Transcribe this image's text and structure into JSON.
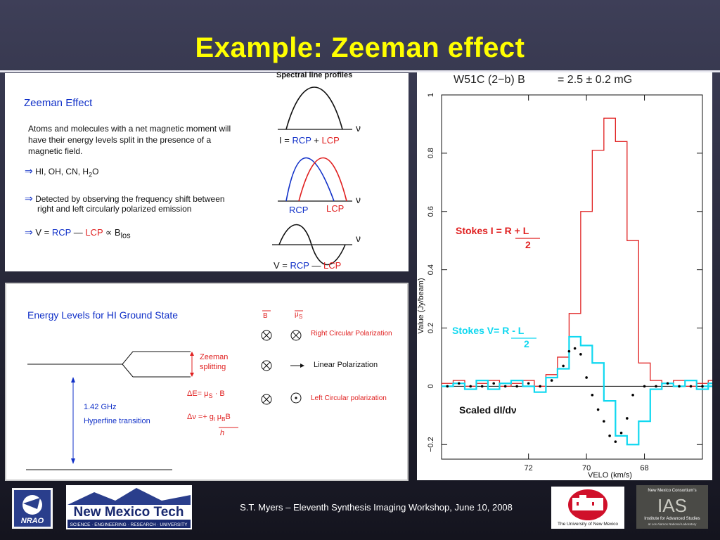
{
  "slide": {
    "title": "Example: Zeeman effect",
    "footer": "S.T. Myers – Eleventh Synthesis Imaging Workshop, June 10, 2008"
  },
  "panel1": {
    "heading": "Zeeman Effect",
    "paragraph": [
      "Atoms and molecules with a net magnetic moment will",
      "have their energy levels split in the presence of a",
      "magnetic field."
    ],
    "bullet1": "HI, OH, CN, H",
    "bullet1_sub": "2",
    "bullet1_end": "O",
    "bullet2": [
      "Detected by observing the frequency shift between",
      "right and left circularly polarized emission"
    ],
    "bullet3": {
      "v": "V =",
      "rcp": "RCP",
      "minus": "—",
      "lcp": "LCP",
      "prop": "∝ B",
      "sub": "los"
    },
    "profiles_title": "Spectral line profiles",
    "eq1": {
      "i": "I =",
      "rcp": "RCP",
      "plus": "+",
      "lcp": "LCP"
    },
    "labels2": {
      "rcp": "RCP",
      "lcp": "LCP"
    },
    "eq3": {
      "v": "V =",
      "rcp": "RCP",
      "minus": "—",
      "lcp": "LCP"
    },
    "nu": "ν",
    "arrow": "⇒"
  },
  "panel2": {
    "heading": "Energy Levels for HI Ground State",
    "zeeman": [
      "Zeeman",
      "splitting"
    ],
    "freq": "1.42 GHz",
    "hyperfine": "Hyperfine transition",
    "b_label": "B",
    "mu_label": "μ",
    "mu_sub": "S",
    "rcp_text": "Right Circular Polarization",
    "lin_text": "Linear Polarization",
    "lcp_text": "Left Circular polarization",
    "dE": "ΔE= μ",
    "dE_end": "· B",
    "dnu": "Δν =+ g",
    "dnu_mid": "μ",
    "dnu_end": "B",
    "h": "h"
  },
  "chart_data": {
    "type": "line",
    "title": "W51C (2−b)  B",
    "title_value": "= 2.5 ± 0.2 mG",
    "xlabel": "VELO (km/s)",
    "ylabel": "Value (Jy/beam)",
    "xlim": [
      75,
      66
    ],
    "ylim": [
      -0.25,
      1.0
    ],
    "xticks": [
      72,
      70,
      68
    ],
    "yticks": [
      -0.2,
      0,
      0.2,
      0.4,
      0.6,
      0.8,
      1
    ],
    "series": [
      {
        "name": "Stokes I = R + L / 2",
        "color": "#e02020",
        "x": [
          75.0,
          74.6,
          74.2,
          73.8,
          73.4,
          73.0,
          72.6,
          72.2,
          71.8,
          71.4,
          71.0,
          70.6,
          70.2,
          69.8,
          69.4,
          69.0,
          68.6,
          68.2,
          67.8,
          67.4,
          67.0,
          66.6,
          66.2,
          65.8,
          65.4
        ],
        "y": [
          0.01,
          0.02,
          0.0,
          0.01,
          0.02,
          0.0,
          0.01,
          0.02,
          0.0,
          0.04,
          0.1,
          0.25,
          0.6,
          0.81,
          0.92,
          0.84,
          0.5,
          0.08,
          0.02,
          0.01,
          0.02,
          0.0,
          0.01,
          0.02,
          0.0
        ]
      },
      {
        "name": "Stokes V= R - L / 2",
        "color": "#10d8f0",
        "x": [
          75.0,
          74.6,
          74.2,
          73.8,
          73.4,
          73.0,
          72.6,
          72.2,
          71.8,
          71.4,
          71.0,
          70.6,
          70.2,
          69.8,
          69.4,
          69.0,
          68.6,
          68.2,
          67.8,
          67.4,
          67.0,
          66.6,
          66.2,
          65.8,
          65.4
        ],
        "y": [
          0.0,
          0.01,
          -0.01,
          0.02,
          -0.01,
          0.01,
          0.02,
          0.0,
          -0.02,
          0.03,
          0.06,
          0.17,
          0.14,
          0.08,
          -0.05,
          -0.17,
          -0.2,
          -0.12,
          -0.01,
          0.01,
          0.0,
          0.02,
          -0.01,
          0.01,
          0.0
        ]
      },
      {
        "name": "Scaled dI/dν",
        "color": "#000000",
        "x": [
          74.8,
          74.4,
          74.0,
          73.6,
          73.2,
          72.8,
          72.4,
          72.0,
          71.6,
          71.2,
          70.8,
          70.6,
          70.4,
          70.2,
          70.0,
          69.8,
          69.6,
          69.4,
          69.2,
          69.0,
          68.8,
          68.6,
          68.4,
          68.0,
          67.6,
          67.2,
          66.8,
          66.4,
          66.0
        ],
        "y": [
          0.0,
          0.01,
          0.0,
          0.0,
          0.01,
          0.0,
          0.0,
          0.01,
          0.0,
          0.02,
          0.07,
          0.12,
          0.13,
          0.11,
          0.03,
          -0.03,
          -0.08,
          -0.12,
          -0.17,
          -0.19,
          -0.16,
          -0.11,
          -0.03,
          0.0,
          0.0,
          0.01,
          0.0,
          0.0,
          0.0
        ]
      }
    ],
    "annotations": {
      "stokes_i": "Stokes I = R + L",
      "stokes_v": "Stokes V= R - L",
      "den": "2",
      "scaled": "Scaled dI/dν"
    }
  },
  "logos": {
    "nrao": "NRAO",
    "nmt": "New Mexico Tech",
    "nmt_sub": "SCIENCE · ENGINEERING · RESEARCH · UNIVERSITY",
    "unm": "The University of New Mexico",
    "ias_top": "New Mexico Consortium's",
    "ias": "IAS",
    "ias_sub": "Institute for Advanced Studies",
    "ias_sub2": "at Los Alamos National Laboratory"
  },
  "colors": {
    "title": "#ffff00",
    "rcp": "#1030c8",
    "lcp": "#e02020",
    "stokes_v": "#10d8f0"
  }
}
